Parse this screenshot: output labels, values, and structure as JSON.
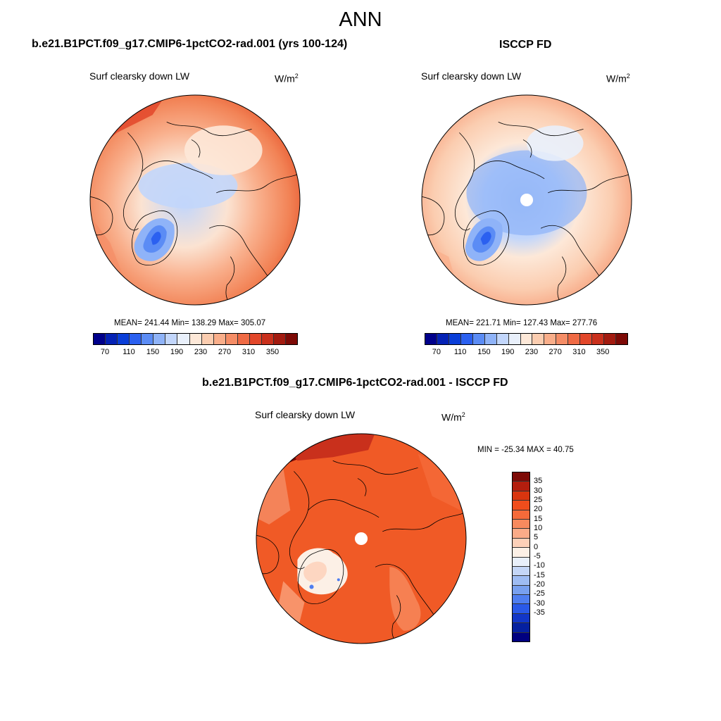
{
  "title": "ANN",
  "panels": [
    {
      "title": "b.e21.B1PCT.f09_g17.CMIP6-1pctCO2-rad.001 (yrs 100-124)",
      "variable": "Surf clearsky down LW",
      "units": "W/m",
      "units_sup": "2",
      "stats": "MEAN= 241.44  Min= 138.29  Max= 305.07"
    },
    {
      "title": "ISCCP FD",
      "variable": "Surf clearsky down LW",
      "units": "W/m",
      "units_sup": "2",
      "stats": "MEAN= 221.71  Min= 127.43  Max= 277.76"
    },
    {
      "title": "b.e21.B1PCT.f09_g17.CMIP6-1pctCO2-rad.001 - ISCCP FD",
      "variable": "Surf clearsky down LW",
      "units": "W/m",
      "units_sup": "2",
      "stats": "MIN = -25.34 MAX =  40.75"
    }
  ],
  "colorbar_abs": {
    "colors": [
      "#00008b",
      "#0522b5",
      "#0a3ed8",
      "#2b60f0",
      "#5b8cf5",
      "#8fb3f8",
      "#c2d6fb",
      "#e9f0fb",
      "#fde8d8",
      "#fbcdb0",
      "#f9ae8a",
      "#f58d66",
      "#ef6a44",
      "#e2472a",
      "#c9301c",
      "#a31b10",
      "#7d0a06"
    ],
    "labels": [
      "70",
      "110",
      "150",
      "190",
      "230",
      "270",
      "310",
      "350"
    ]
  },
  "colorbar_diff": {
    "colors": [
      "#7d0a06",
      "#b31e0e",
      "#d9350f",
      "#f04d1c",
      "#f56a3a",
      "#f88a5e",
      "#fbab88",
      "#fdd0b8",
      "#fcf0e6",
      "#e8effa",
      "#c4d6f7",
      "#9ebcf3",
      "#78a0ef",
      "#4f7ef0",
      "#2a59e8",
      "#1236c8",
      "#0520a0",
      "#000080"
    ],
    "labels": [
      "35",
      "30",
      "25",
      "20",
      "15",
      "10",
      "5",
      "0",
      "-5",
      "-10",
      "-15",
      "-20",
      "-25",
      "-30",
      "-35"
    ]
  }
}
